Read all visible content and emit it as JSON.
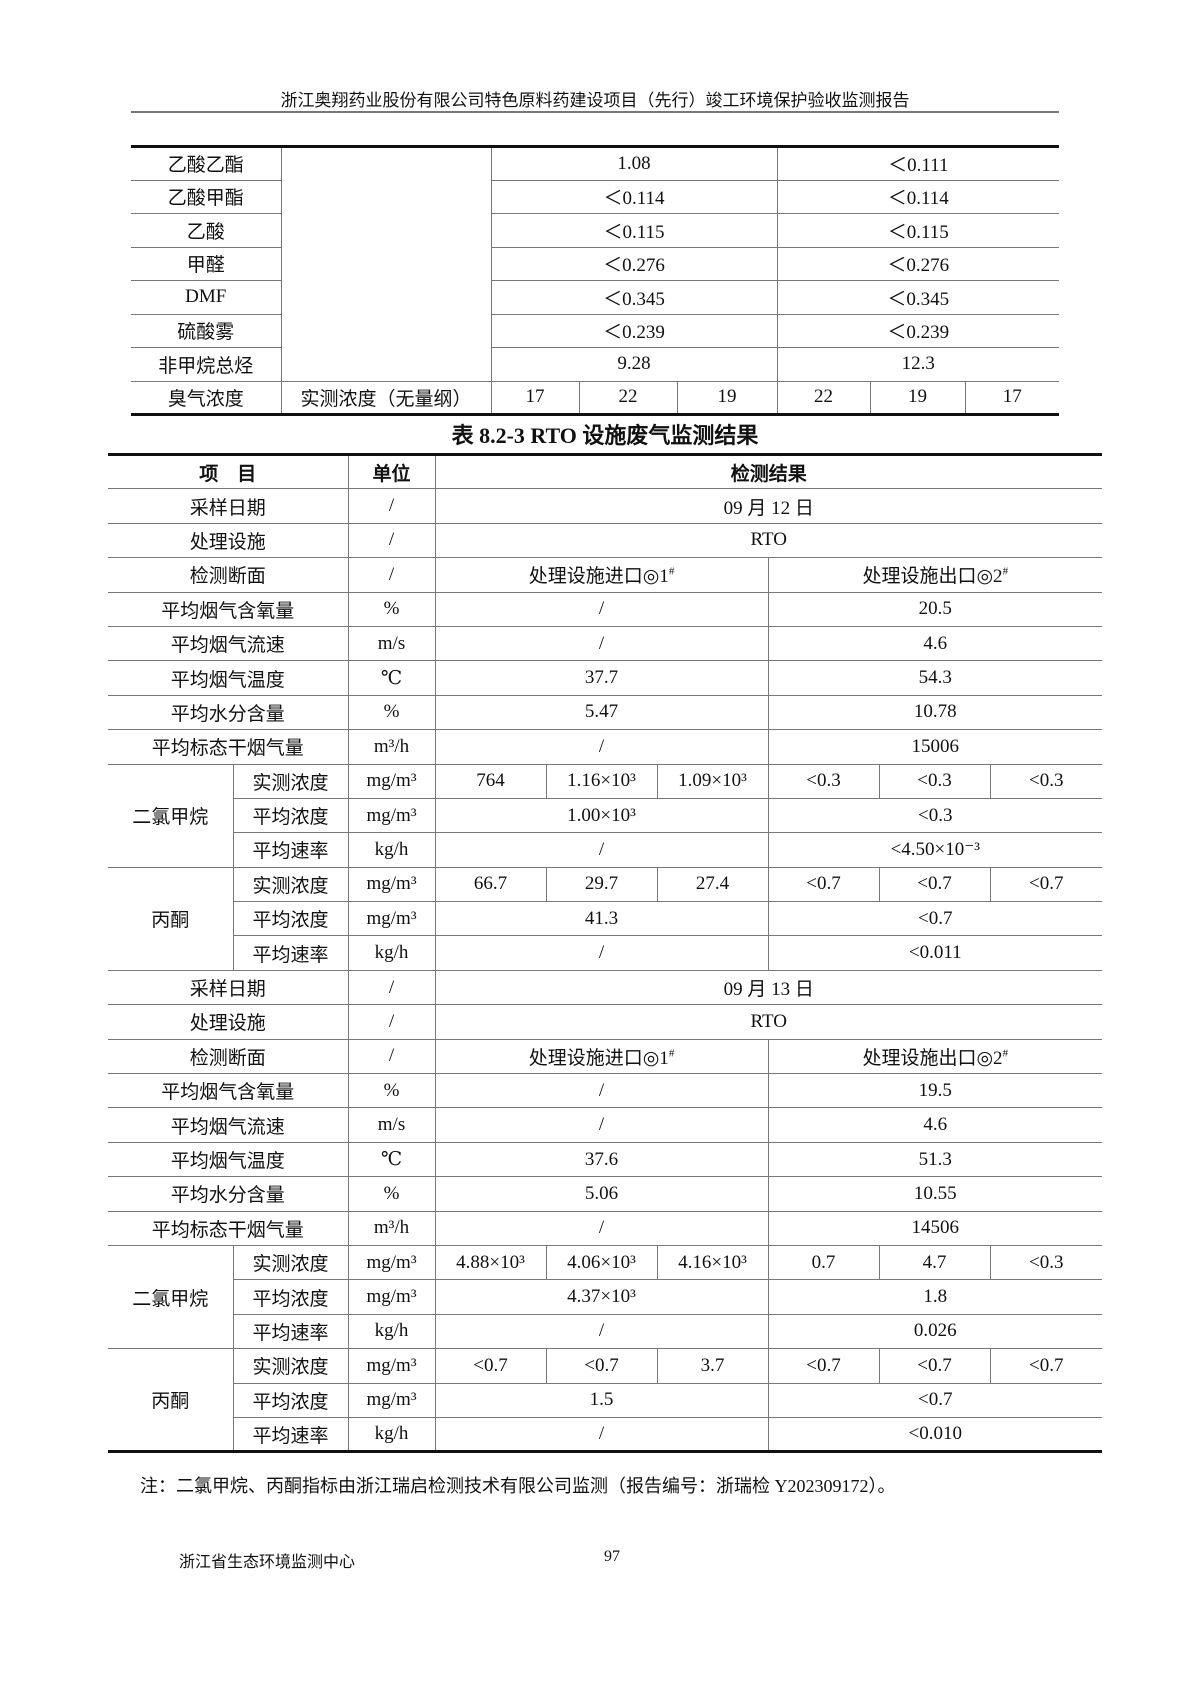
{
  "header": {
    "title": "浙江奥翔药业股份有限公司特色原料药建设项目（先行）竣工环境保护验收监测报告"
  },
  "table_prev": {
    "rows": [
      {
        "item": "乙酸乙酯",
        "values": [
          "1.08",
          "＜0.111"
        ]
      },
      {
        "item": "乙酸甲酯",
        "values": [
          "＜0.114",
          "＜0.114"
        ]
      },
      {
        "item": "乙酸",
        "values": [
          "＜0.115",
          "＜0.115"
        ]
      },
      {
        "item": "甲醛",
        "values": [
          "＜0.276",
          "＜0.276"
        ]
      },
      {
        "item": "DMF",
        "values": [
          "＜0.345",
          "＜0.345"
        ]
      },
      {
        "item": "硫酸雾",
        "values": [
          "＜0.239",
          "＜0.239"
        ]
      },
      {
        "item": "非甲烷总烃",
        "values": [
          "9.28",
          "12.3"
        ]
      }
    ],
    "odor": {
      "item": "臭气浓度",
      "sub": "实测浓度（无量纲）",
      "values": [
        "17",
        "22",
        "19",
        "22",
        "19",
        "17"
      ]
    }
  },
  "table_title": "表 8.2-3 RTO 设施废气监测结果",
  "table": {
    "headers": {
      "item": "项　目",
      "unit": "单位",
      "result": "检测结果"
    },
    "days": [
      {
        "date_label": "采样日期",
        "date_unit": "/",
        "date": "09 月 12 日",
        "facility_label": "处理设施",
        "facility_unit": "/",
        "facility": "RTO",
        "section_label": "检测断面",
        "section_unit": "/",
        "inlet": {
          "text": "处理设施进口◎1",
          "sup": "#"
        },
        "outlet": {
          "text": "处理设施出口◎2",
          "sup": "#"
        },
        "params": [
          {
            "name": "平均烟气含氧量",
            "unit": "%",
            "inlet": "/",
            "outlet": "20.5"
          },
          {
            "name": "平均烟气流速",
            "unit": "m/s",
            "inlet": "/",
            "outlet": "4.6"
          },
          {
            "name": "平均烟气温度",
            "unit": "℃",
            "inlet": "37.7",
            "outlet": "54.3"
          },
          {
            "name": "平均水分含量",
            "unit": "%",
            "inlet": "5.47",
            "outlet": "10.78"
          },
          {
            "name": "平均标态干烟气量",
            "unit": "m³/h",
            "inlet": "/",
            "outlet": "15006"
          }
        ],
        "pollutants": [
          {
            "name": "二氯甲烷",
            "measured": {
              "label": "实测浓度",
              "unit": "mg/m³",
              "values": [
                "764",
                "1.16×10³",
                "1.09×10³",
                "<0.3",
                "<0.3",
                "<0.3"
              ]
            },
            "avg": {
              "label": "平均浓度",
              "unit": "mg/m³",
              "inlet": "1.00×10³",
              "outlet": "<0.3"
            },
            "rate": {
              "label": "平均速率",
              "unit": "kg/h",
              "inlet": "/",
              "outlet": "<4.50×10⁻³"
            }
          },
          {
            "name": "丙酮",
            "measured": {
              "label": "实测浓度",
              "unit": "mg/m³",
              "values": [
                "66.7",
                "29.7",
                "27.4",
                "<0.7",
                "<0.7",
                "<0.7"
              ]
            },
            "avg": {
              "label": "平均浓度",
              "unit": "mg/m³",
              "inlet": "41.3",
              "outlet": "<0.7"
            },
            "rate": {
              "label": "平均速率",
              "unit": "kg/h",
              "inlet": "/",
              "outlet": "<0.011"
            }
          }
        ]
      },
      {
        "date_label": "采样日期",
        "date_unit": "/",
        "date": "09 月 13 日",
        "facility_label": "处理设施",
        "facility_unit": "/",
        "facility": "RTO",
        "section_label": "检测断面",
        "section_unit": "/",
        "inlet": {
          "text": "处理设施进口◎1",
          "sup": "#"
        },
        "outlet": {
          "text": "处理设施出口◎2",
          "sup": "#"
        },
        "params": [
          {
            "name": "平均烟气含氧量",
            "unit": "%",
            "inlet": "/",
            "outlet": "19.5"
          },
          {
            "name": "平均烟气流速",
            "unit": "m/s",
            "inlet": "/",
            "outlet": "4.6"
          },
          {
            "name": "平均烟气温度",
            "unit": "℃",
            "inlet": "37.6",
            "outlet": "51.3"
          },
          {
            "name": "平均水分含量",
            "unit": "%",
            "inlet": "5.06",
            "outlet": "10.55"
          },
          {
            "name": "平均标态干烟气量",
            "unit": "m³/h",
            "inlet": "/",
            "outlet": "14506"
          }
        ],
        "pollutants": [
          {
            "name": "二氯甲烷",
            "measured": {
              "label": "实测浓度",
              "unit": "mg/m³",
              "values": [
                "4.88×10³",
                "4.06×10³",
                "4.16×10³",
                "0.7",
                "4.7",
                "<0.3"
              ]
            },
            "avg": {
              "label": "平均浓度",
              "unit": "mg/m³",
              "inlet": "4.37×10³",
              "outlet": "1.8"
            },
            "rate": {
              "label": "平均速率",
              "unit": "kg/h",
              "inlet": "/",
              "outlet": "0.026"
            }
          },
          {
            "name": "丙酮",
            "measured": {
              "label": "实测浓度",
              "unit": "mg/m³",
              "values": [
                "<0.7",
                "<0.7",
                "3.7",
                "<0.7",
                "<0.7",
                "<0.7"
              ]
            },
            "avg": {
              "label": "平均浓度",
              "unit": "mg/m³",
              "inlet": "1.5",
              "outlet": "<0.7"
            },
            "rate": {
              "label": "平均速率",
              "unit": "kg/h",
              "inlet": "/",
              "outlet": "<0.010"
            }
          }
        ]
      }
    ]
  },
  "note": "注：二氯甲烷、丙酮指标由浙江瑞启检测技术有限公司监测（报告编号：浙瑞检 Y202309172）。",
  "footer": {
    "org": "浙江省生态环境监测中心",
    "page": "97"
  }
}
